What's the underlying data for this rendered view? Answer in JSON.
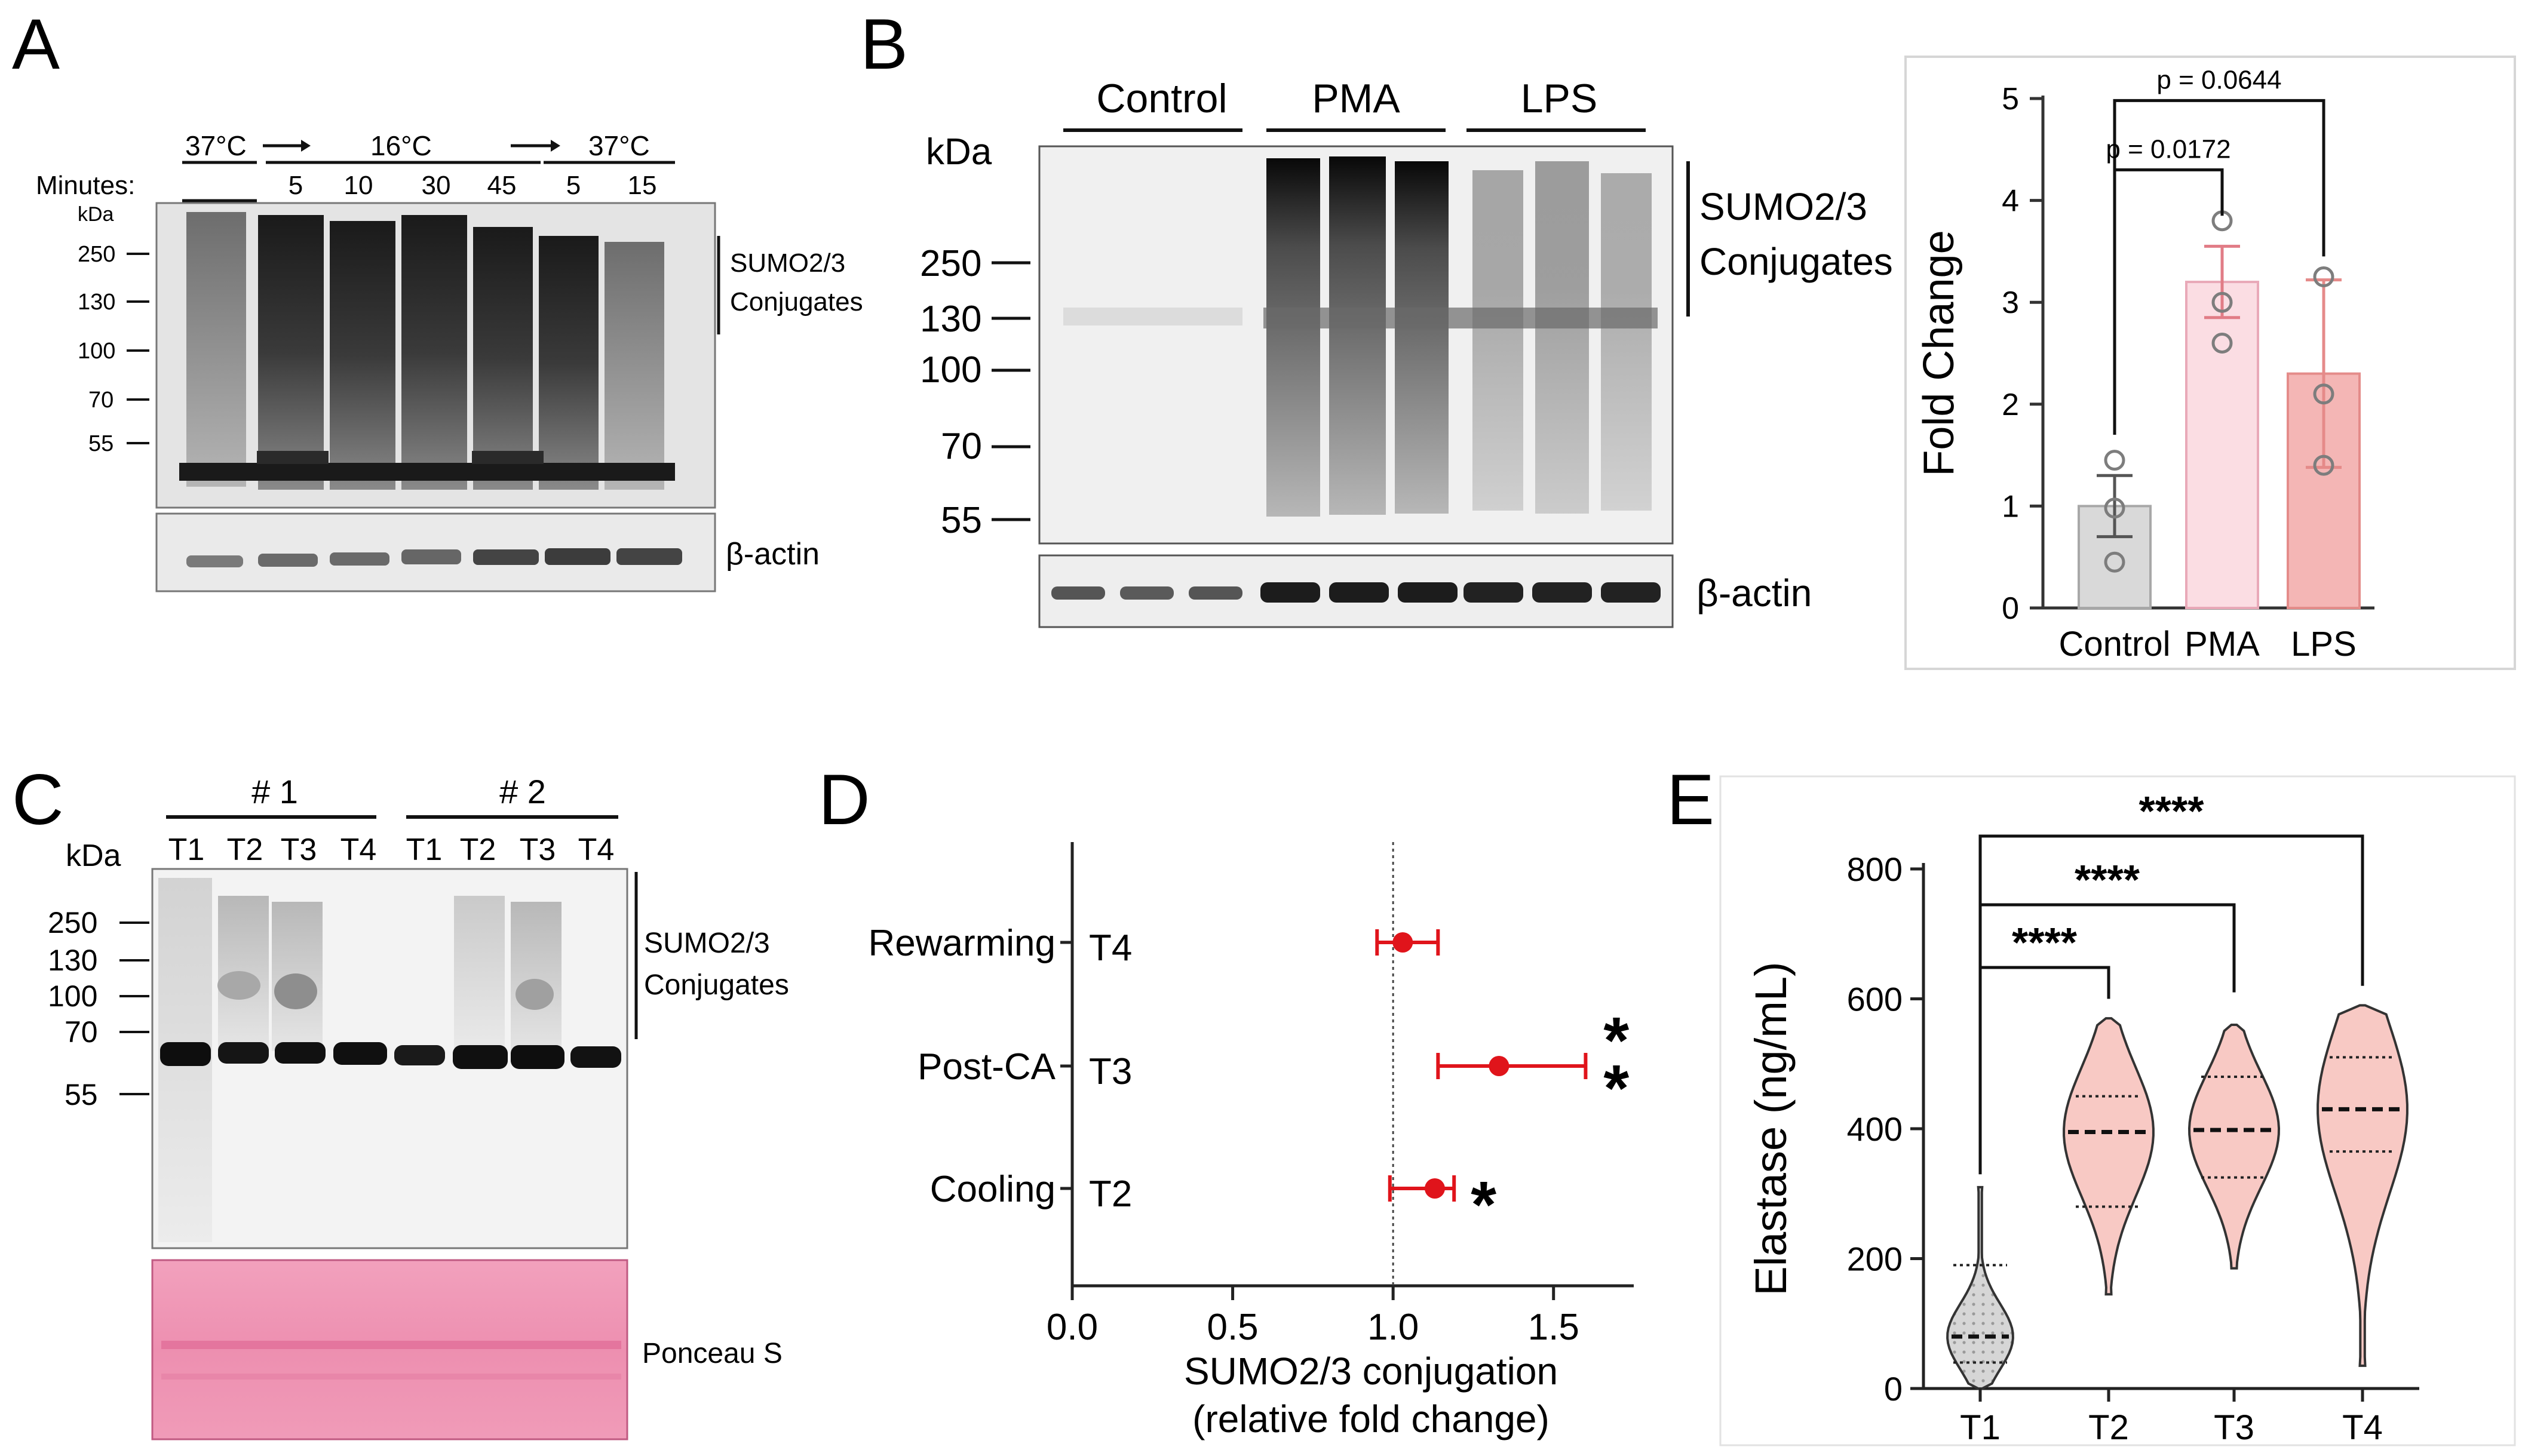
{
  "panels": {
    "A": {
      "letter": "A",
      "temps": [
        "37°C",
        "16°C",
        "37°C"
      ],
      "minutes_label": "Minutes:",
      "minutes": [
        "5",
        "10",
        "30",
        "45",
        "5",
        "15"
      ],
      "kda_label": "kDa",
      "markers": [
        "250",
        "130",
        "100",
        "70",
        "55"
      ],
      "bracket_label": [
        "SUMO2/3",
        "Conjugates"
      ],
      "loading_label": "β-actin"
    },
    "B": {
      "letter": "B",
      "groups": [
        "Control",
        "PMA",
        "LPS"
      ],
      "kda_label": "kDa",
      "markers": [
        "250",
        "130",
        "100",
        "70",
        "55"
      ],
      "bracket_label": [
        "SUMO2/3",
        "Conjugates"
      ],
      "loading_label": "β-actin"
    },
    "C": {
      "letter": "C",
      "groups": [
        "# 1",
        "# 2"
      ],
      "lanes": [
        "T1",
        "T2",
        "T3",
        "T4",
        "T1",
        "T2",
        "T3",
        "T4"
      ],
      "kda_label": "kDa",
      "markers": [
        "250",
        "130",
        "100",
        "70",
        "55"
      ],
      "bracket_label": [
        "SUMO2/3",
        "Conjugates"
      ],
      "stain_label": "Ponceau S"
    },
    "D": {
      "letter": "D"
    },
    "E": {
      "letter": "E"
    }
  },
  "chart_data": [
    {
      "panel": "B",
      "type": "bar",
      "categories": [
        "Control",
        "PMA",
        "LPS"
      ],
      "values": [
        1.0,
        3.2,
        2.3
      ],
      "error": [
        0.3,
        0.35,
        0.92
      ],
      "points": [
        [
          1.45,
          0.98,
          0.45
        ],
        [
          3.8,
          3.0,
          2.6
        ],
        [
          3.25,
          2.1,
          1.4
        ]
      ],
      "ylabel": "Fold Change",
      "ylim": [
        0,
        5
      ],
      "yticks": [
        0,
        1,
        2,
        3,
        4,
        5
      ],
      "annotations": [
        "p = 0.0172",
        "p = 0.0644"
      ],
      "colors": {
        "Control": "#d9d9d9",
        "PMA": "#fbdde3",
        "LPS": "#f4b6b5"
      }
    },
    {
      "panel": "D",
      "type": "scatter",
      "series": [
        {
          "category": "Rewarming",
          "label": "T4",
          "value": 1.03,
          "ci": [
            0.95,
            1.14
          ],
          "stars": ""
        },
        {
          "category": "Post-CA",
          "label": "T3",
          "value": 1.33,
          "ci": [
            1.14,
            1.6
          ],
          "stars": "**"
        },
        {
          "category": "Cooling",
          "label": "T2",
          "value": 1.13,
          "ci": [
            0.99,
            1.19
          ],
          "stars": "*"
        }
      ],
      "xlabel": [
        "SUMO2/3 conjugation",
        "(relative fold change)"
      ],
      "xlim": [
        0,
        1.75
      ],
      "xticks": [
        "0.0",
        "0.5",
        "1.0",
        "1.5"
      ],
      "reference_line": 1.0,
      "color": "#e0141b"
    },
    {
      "panel": "E",
      "type": "violin",
      "categories": [
        "T1",
        "T2",
        "T3",
        "T4"
      ],
      "ylabel": "Elastase (ng/mL)",
      "ylim": [
        0,
        800
      ],
      "yticks": [
        "0",
        "200",
        "400",
        "600",
        "800"
      ],
      "ranges": [
        [
          0,
          310
        ],
        [
          145,
          570
        ],
        [
          185,
          560
        ],
        [
          35,
          590
        ]
      ],
      "medians": [
        80,
        395,
        398,
        430
      ],
      "quartiles": [
        [
          40,
          190
        ],
        [
          280,
          450
        ],
        [
          325,
          480
        ],
        [
          365,
          510
        ]
      ],
      "significance": [
        "****",
        "****",
        "****"
      ],
      "colors": {
        "T1": "#d9d9d9",
        "T2": "#f8c9c4",
        "T3": "#f8c9c4",
        "T4": "#f8c9c4"
      }
    }
  ]
}
